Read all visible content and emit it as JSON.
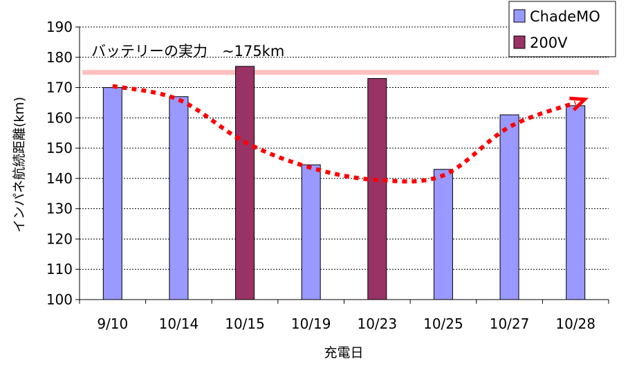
{
  "chart_data": {
    "type": "bar",
    "categories": [
      "9/10",
      "10/14",
      "10/15",
      "10/19",
      "10/23",
      "10/25",
      "10/27",
      "10/28"
    ],
    "series": [
      {
        "name": "ChadeMO",
        "color": "#9999ff",
        "values": [
          170,
          167,
          null,
          144.5,
          null,
          143,
          161,
          164
        ]
      },
      {
        "name": "200V",
        "color": "#993366",
        "values": [
          null,
          null,
          177,
          null,
          173,
          null,
          null,
          null
        ]
      }
    ],
    "xlabel": "充電日",
    "ylabel": "インパネ航続距離(km)",
    "ylim": [
      100,
      190
    ],
    "yticks": [
      100,
      110,
      120,
      130,
      140,
      150,
      160,
      170,
      180,
      190
    ],
    "grid": true,
    "legend_position": "top-right",
    "reference_line": {
      "value": 175,
      "color": "#ffc0c0"
    },
    "annotation": "バッテリーの実力　~175km",
    "trend": {
      "color": "#ff0000",
      "points": [
        {
          "category": "9/10",
          "value": 170.5
        },
        {
          "category": "10/14",
          "value": 166
        },
        {
          "category": "10/15",
          "value": 152
        },
        {
          "category": "10/19",
          "value": 143.5
        },
        {
          "category": "10/23",
          "value": 139.5
        },
        {
          "category": "10/25",
          "value": 141
        },
        {
          "category": "10/27",
          "value": 157
        },
        {
          "category": "10/28",
          "value": 165
        }
      ]
    }
  }
}
